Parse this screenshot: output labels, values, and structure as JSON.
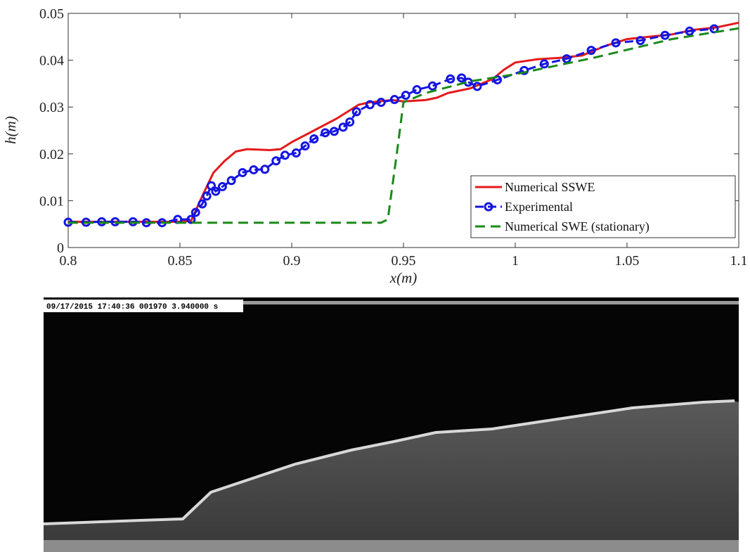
{
  "chart_data": {
    "type": "line",
    "xlabel": "x(m)",
    "ylabel": "h(m)",
    "xlim": [
      0.8,
      1.1
    ],
    "ylim": [
      0,
      0.05
    ],
    "xticks": [
      0.8,
      0.85,
      0.9,
      0.95,
      1,
      1.05,
      1.1
    ],
    "yticks": [
      0,
      0.01,
      0.02,
      0.03,
      0.04,
      0.05
    ],
    "legend": "lower right",
    "series": [
      {
        "name": "Numerical SSWE",
        "color": "#e41a1c",
        "style": "solid",
        "marker": false,
        "x": [
          0.8,
          0.85,
          0.855,
          0.86,
          0.865,
          0.87,
          0.875,
          0.88,
          0.89,
          0.895,
          0.9,
          0.91,
          0.92,
          0.93,
          0.935,
          0.945,
          0.95,
          0.96,
          0.965,
          0.97,
          0.98,
          0.99,
          0.995,
          1.0,
          1.01,
          1.02,
          1.03,
          1.04,
          1.05,
          1.06,
          1.07,
          1.08,
          1.09,
          1.1
        ],
        "values": [
          0.0055,
          0.0055,
          0.0057,
          0.011,
          0.016,
          0.0185,
          0.0205,
          0.021,
          0.0208,
          0.021,
          0.0225,
          0.025,
          0.0275,
          0.0305,
          0.031,
          0.0315,
          0.0312,
          0.0315,
          0.032,
          0.033,
          0.034,
          0.036,
          0.038,
          0.0395,
          0.0402,
          0.0405,
          0.041,
          0.043,
          0.0445,
          0.045,
          0.0455,
          0.0465,
          0.047,
          0.048
        ]
      },
      {
        "name": "Experimental",
        "color": "#1515e0",
        "style": "dashed",
        "marker": true,
        "x": [
          0.8,
          0.808,
          0.815,
          0.821,
          0.829,
          0.835,
          0.842,
          0.849,
          0.855,
          0.857,
          0.86,
          0.862,
          0.864,
          0.866,
          0.869,
          0.873,
          0.878,
          0.883,
          0.888,
          0.893,
          0.897,
          0.902,
          0.906,
          0.91,
          0.915,
          0.919,
          0.923,
          0.926,
          0.929,
          0.935,
          0.94,
          0.946,
          0.951,
          0.956,
          0.963,
          0.971,
          0.976,
          0.979,
          0.983,
          0.992,
          1.004,
          1.013,
          1.023,
          1.034,
          1.045,
          1.056,
          1.067,
          1.078,
          1.089
        ],
        "values": [
          0.0054,
          0.0054,
          0.0055,
          0.0055,
          0.0055,
          0.0053,
          0.0053,
          0.006,
          0.006,
          0.0075,
          0.0093,
          0.011,
          0.0132,
          0.012,
          0.013,
          0.0143,
          0.016,
          0.0166,
          0.0167,
          0.0185,
          0.0197,
          0.0202,
          0.0217,
          0.0232,
          0.0245,
          0.0248,
          0.0257,
          0.0268,
          0.029,
          0.0305,
          0.031,
          0.0316,
          0.0325,
          0.0337,
          0.0345,
          0.036,
          0.0362,
          0.0353,
          0.0344,
          0.0358,
          0.0378,
          0.0392,
          0.0403,
          0.0421,
          0.0437,
          0.0442,
          0.0453,
          0.0462,
          0.0467
        ]
      },
      {
        "name": "Numerical SWE (stationary)",
        "color": "#1a8a1a",
        "style": "dashed",
        "marker": false,
        "x": [
          0.8,
          0.94,
          0.943,
          0.947,
          0.95,
          0.96,
          0.98,
          1.0,
          1.035,
          1.07,
          1.1
        ],
        "values": [
          0.0053,
          0.0053,
          0.006,
          0.02,
          0.031,
          0.033,
          0.0355,
          0.037,
          0.0405,
          0.0445,
          0.0468
        ]
      }
    ]
  },
  "image": {
    "timestamp": "09/17/2015 17:40:36 001970 3.940000 s"
  }
}
